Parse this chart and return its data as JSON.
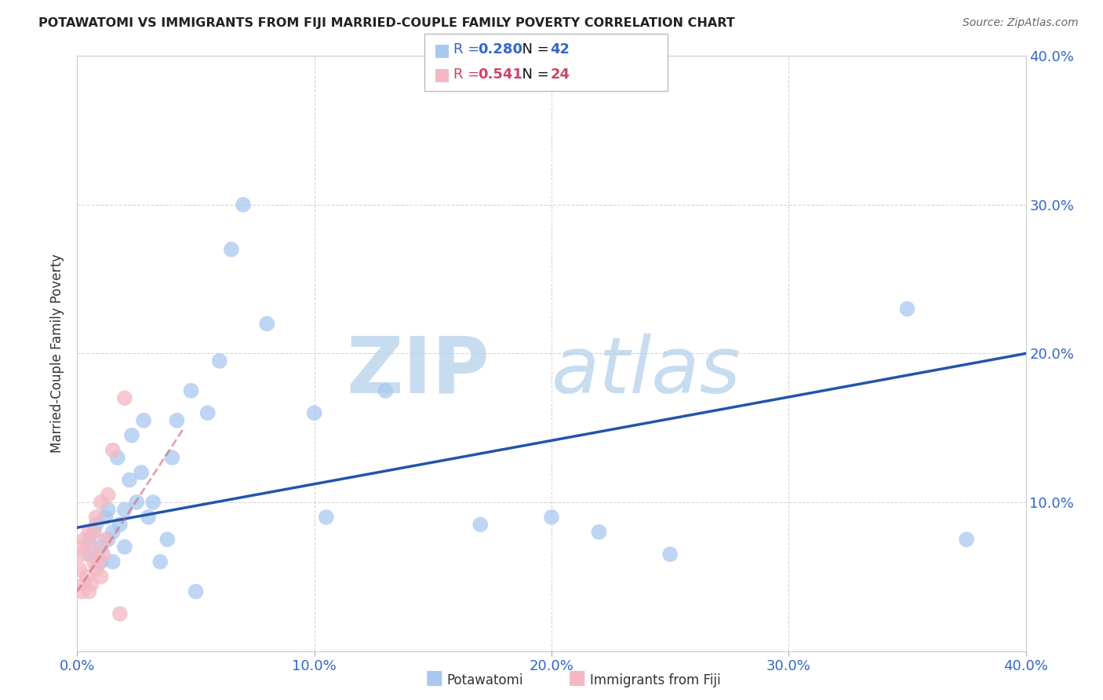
{
  "title": "POTAWATOMI VS IMMIGRANTS FROM FIJI MARRIED-COUPLE FAMILY POVERTY CORRELATION CHART",
  "source": "Source: ZipAtlas.com",
  "ylabel": "Married-Couple Family Poverty",
  "xlim": [
    0.0,
    0.4
  ],
  "ylim": [
    0.0,
    0.4
  ],
  "xticks": [
    0.0,
    0.1,
    0.2,
    0.3,
    0.4
  ],
  "yticks": [
    0.0,
    0.1,
    0.2,
    0.3,
    0.4
  ],
  "xticklabels": [
    "0.0%",
    "10.0%",
    "20.0%",
    "30.0%",
    "40.0%"
  ],
  "yticklabels": [
    "",
    "10.0%",
    "20.0%",
    "30.0%",
    "40.0%"
  ],
  "blue_R": 0.28,
  "blue_N": 42,
  "pink_R": 0.541,
  "pink_N": 24,
  "blue_color": "#A8C8F0",
  "pink_color": "#F4B8C4",
  "blue_line_color": "#2255AA",
  "pink_line_color": "#CC6677",
  "legend_label_blue": "Potawatomi",
  "legend_label_pink": "Immigrants from Fiji",
  "blue_points_x": [
    0.005,
    0.005,
    0.007,
    0.008,
    0.01,
    0.01,
    0.012,
    0.013,
    0.013,
    0.015,
    0.015,
    0.017,
    0.018,
    0.02,
    0.02,
    0.022,
    0.023,
    0.025,
    0.027,
    0.028,
    0.03,
    0.032,
    0.035,
    0.038,
    0.04,
    0.042,
    0.048,
    0.05,
    0.055,
    0.06,
    0.065,
    0.07,
    0.08,
    0.1,
    0.105,
    0.13,
    0.17,
    0.2,
    0.22,
    0.25,
    0.35,
    0.375
  ],
  "blue_points_y": [
    0.075,
    0.065,
    0.08,
    0.085,
    0.06,
    0.07,
    0.09,
    0.075,
    0.095,
    0.06,
    0.08,
    0.13,
    0.085,
    0.07,
    0.095,
    0.115,
    0.145,
    0.1,
    0.12,
    0.155,
    0.09,
    0.1,
    0.06,
    0.075,
    0.13,
    0.155,
    0.175,
    0.04,
    0.16,
    0.195,
    0.27,
    0.3,
    0.22,
    0.16,
    0.09,
    0.175,
    0.085,
    0.09,
    0.08,
    0.065,
    0.23,
    0.075
  ],
  "pink_points_x": [
    0.001,
    0.001,
    0.002,
    0.002,
    0.003,
    0.003,
    0.004,
    0.005,
    0.005,
    0.006,
    0.006,
    0.007,
    0.007,
    0.008,
    0.008,
    0.009,
    0.01,
    0.01,
    0.011,
    0.012,
    0.013,
    0.015,
    0.018,
    0.02
  ],
  "pink_points_y": [
    0.055,
    0.07,
    0.04,
    0.065,
    0.045,
    0.075,
    0.05,
    0.04,
    0.08,
    0.045,
    0.07,
    0.06,
    0.08,
    0.055,
    0.09,
    0.06,
    0.05,
    0.1,
    0.065,
    0.075,
    0.105,
    0.135,
    0.025,
    0.17
  ],
  "blue_line_x": [
    0.0,
    0.4
  ],
  "blue_line_y": [
    0.083,
    0.2
  ],
  "pink_line_x": [
    0.0,
    0.045
  ],
  "pink_line_y": [
    0.04,
    0.15
  ]
}
